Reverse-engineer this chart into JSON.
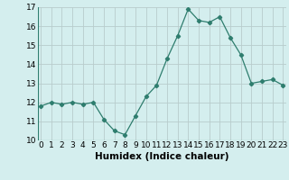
{
  "x": [
    0,
    1,
    2,
    3,
    4,
    5,
    6,
    7,
    8,
    9,
    10,
    11,
    12,
    13,
    14,
    15,
    16,
    17,
    18,
    19,
    20,
    21,
    22,
    23
  ],
  "y": [
    11.8,
    12.0,
    11.9,
    12.0,
    11.9,
    12.0,
    11.1,
    10.5,
    10.3,
    11.3,
    12.3,
    12.9,
    14.3,
    15.5,
    16.9,
    16.3,
    16.2,
    16.5,
    15.4,
    14.5,
    13.0,
    13.1,
    13.2,
    12.9
  ],
  "xlabel": "Humidex (Indice chaleur)",
  "ylim": [
    10,
    17
  ],
  "xlim": [
    -0.3,
    23.3
  ],
  "yticks": [
    10,
    11,
    12,
    13,
    14,
    15,
    16,
    17
  ],
  "xticks": [
    0,
    1,
    2,
    3,
    4,
    5,
    6,
    7,
    8,
    9,
    10,
    11,
    12,
    13,
    14,
    15,
    16,
    17,
    18,
    19,
    20,
    21,
    22,
    23
  ],
  "line_color": "#2e7d6e",
  "marker": "D",
  "marker_size": 2.2,
  "bg_color": "#d4eeee",
  "grid_color": "#b8cccc",
  "xlabel_fontsize": 7.5,
  "tick_fontsize": 6.5,
  "linewidth": 0.9
}
